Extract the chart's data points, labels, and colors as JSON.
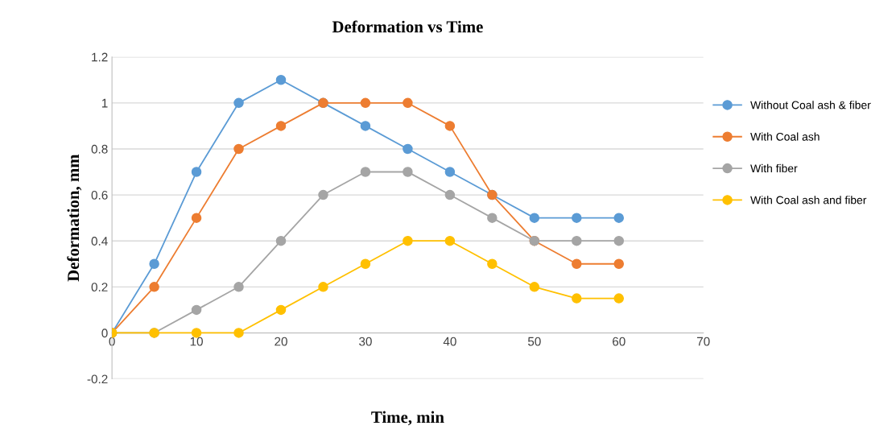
{
  "chart_data": {
    "type": "line",
    "title": "Deformation vs Time",
    "xlabel": "Time, min",
    "ylabel": "Deformation, mm",
    "x": [
      0,
      5,
      10,
      15,
      20,
      25,
      30,
      35,
      40,
      45,
      50,
      55,
      60
    ],
    "series": [
      {
        "name": "Without Coal ash & fiber",
        "color": "#5b9bd5",
        "values": [
          0,
          0.3,
          0.7,
          1,
          1.1,
          1,
          0.9,
          0.8,
          0.7,
          0.6,
          0.5,
          0.5,
          0.5
        ]
      },
      {
        "name": "With Coal ash",
        "color": "#ed7d31",
        "values": [
          0,
          0.2,
          0.5,
          0.8,
          0.9,
          1,
          1,
          1,
          0.9,
          0.6,
          0.4,
          0.3,
          0.3
        ]
      },
      {
        "name": "With fiber",
        "color": "#a5a5a5",
        "values": [
          0,
          0,
          0.1,
          0.2,
          0.4,
          0.6,
          0.7,
          0.7,
          0.6,
          0.5,
          0.4,
          0.4,
          0.4
        ]
      },
      {
        "name": "With Coal ash and fiber",
        "color": "#ffc000",
        "values": [
          0,
          0,
          0,
          0,
          0.1,
          0.2,
          0.3,
          0.4,
          0.4,
          0.3,
          0.2,
          0.15,
          0.15
        ]
      }
    ],
    "xlim": [
      0,
      70
    ],
    "xticks": [
      0,
      10,
      20,
      30,
      40,
      50,
      60,
      70
    ],
    "ylim": [
      -0.2,
      1.2
    ],
    "yticks": [
      -0.2,
      0,
      0.2,
      0.4,
      0.6,
      0.8,
      1,
      1.2
    ],
    "grid": "y",
    "legend": "right",
    "marker": "circle"
  }
}
